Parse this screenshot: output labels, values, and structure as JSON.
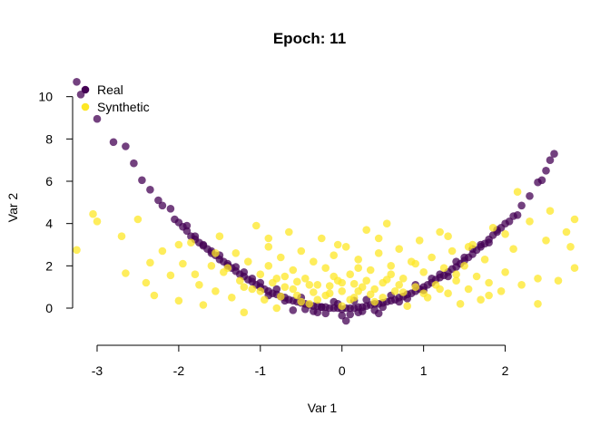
{
  "chart_data": {
    "type": "scatter",
    "title": "Epoch: 11",
    "xlabel": "Var 1",
    "ylabel": "Var 2",
    "xlim": [
      -3.3,
      2.85
    ],
    "ylim": [
      -1.2,
      10.8
    ],
    "xticks": [
      -3,
      -2,
      -1,
      0,
      1,
      2
    ],
    "yticks": [
      0,
      2,
      4,
      6,
      8,
      10
    ],
    "xtick_labels": [
      "-3",
      "-2",
      "-1",
      "0",
      "1",
      "2"
    ],
    "ytick_labels": [
      "0",
      "2",
      "4",
      "6",
      "8",
      "10"
    ],
    "grid": false,
    "legend": {
      "placement": "top-left"
    },
    "series": [
      {
        "name": "Real",
        "color": "#440154",
        "points": [
          [
            -3.25,
            10.7
          ],
          [
            -3.2,
            10.1
          ],
          [
            -3.0,
            8.95
          ],
          [
            -2.8,
            7.85
          ],
          [
            -2.65,
            7.65
          ],
          [
            -2.55,
            6.85
          ],
          [
            -2.45,
            6.05
          ],
          [
            -2.35,
            5.6
          ],
          [
            -2.25,
            5.1
          ],
          [
            -2.2,
            4.85
          ],
          [
            -2.1,
            4.7
          ],
          [
            -2.05,
            4.2
          ],
          [
            -2.0,
            4.05
          ],
          [
            -1.95,
            3.85
          ],
          [
            -1.9,
            3.65
          ],
          [
            -1.85,
            3.4
          ],
          [
            -1.8,
            3.25
          ],
          [
            -1.75,
            3.1
          ],
          [
            -1.7,
            2.95
          ],
          [
            -1.65,
            2.8
          ],
          [
            -1.6,
            2.6
          ],
          [
            -1.55,
            2.5
          ],
          [
            -1.5,
            2.3
          ],
          [
            -1.45,
            2.2
          ],
          [
            -1.4,
            2.0
          ],
          [
            -1.35,
            1.9
          ],
          [
            -1.3,
            1.75
          ],
          [
            -1.25,
            1.6
          ],
          [
            -1.2,
            1.5
          ],
          [
            -1.15,
            1.35
          ],
          [
            -1.1,
            1.25
          ],
          [
            -1.05,
            1.1
          ],
          [
            -1.0,
            1.0
          ],
          [
            -0.95,
            0.9
          ],
          [
            -0.9,
            0.8
          ],
          [
            -0.85,
            0.7
          ],
          [
            -0.8,
            0.65
          ],
          [
            -0.75,
            0.55
          ],
          [
            -0.7,
            0.5
          ],
          [
            -0.65,
            0.4
          ],
          [
            -0.6,
            0.35
          ],
          [
            -0.55,
            0.3
          ],
          [
            -0.5,
            0.25
          ],
          [
            -0.45,
            0.2
          ],
          [
            -0.4,
            0.15
          ],
          [
            -0.35,
            0.1
          ],
          [
            -0.3,
            0.1
          ],
          [
            -0.25,
            0.05
          ],
          [
            -0.2,
            0.05
          ],
          [
            -0.15,
            0.0
          ],
          [
            -0.1,
            0.0
          ],
          [
            -0.05,
            0.0
          ],
          [
            0.0,
            -0.05
          ],
          [
            0.05,
            0.0
          ],
          [
            0.1,
            0.0
          ],
          [
            0.15,
            0.0
          ],
          [
            0.2,
            0.05
          ],
          [
            0.25,
            0.05
          ],
          [
            0.3,
            0.1
          ],
          [
            0.35,
            0.15
          ],
          [
            0.4,
            0.2
          ],
          [
            0.45,
            0.2
          ],
          [
            0.5,
            0.25
          ],
          [
            0.55,
            0.3
          ],
          [
            0.6,
            0.35
          ],
          [
            0.65,
            0.4
          ],
          [
            0.7,
            0.5
          ],
          [
            0.75,
            0.55
          ],
          [
            0.8,
            0.65
          ],
          [
            0.85,
            0.7
          ],
          [
            0.9,
            0.8
          ],
          [
            0.95,
            0.9
          ],
          [
            1.0,
            1.0
          ],
          [
            1.05,
            1.1
          ],
          [
            1.1,
            1.2
          ],
          [
            1.15,
            1.35
          ],
          [
            1.2,
            1.45
          ],
          [
            1.25,
            1.55
          ],
          [
            1.3,
            1.7
          ],
          [
            1.35,
            1.85
          ],
          [
            1.4,
            1.95
          ],
          [
            1.45,
            2.1
          ],
          [
            1.5,
            2.25
          ],
          [
            1.55,
            2.4
          ],
          [
            1.6,
            2.55
          ],
          [
            1.65,
            2.75
          ],
          [
            1.7,
            2.9
          ],
          [
            1.75,
            3.05
          ],
          [
            1.8,
            3.25
          ],
          [
            1.85,
            3.45
          ],
          [
            1.9,
            3.6
          ],
          [
            1.95,
            3.8
          ],
          [
            2.0,
            4.0
          ],
          [
            2.1,
            4.35
          ],
          [
            2.2,
            4.85
          ],
          [
            2.3,
            5.3
          ],
          [
            2.4,
            5.95
          ],
          [
            2.45,
            6.05
          ],
          [
            2.5,
            6.5
          ],
          [
            2.55,
            7.0
          ],
          [
            2.6,
            7.3
          ],
          [
            -0.6,
            -0.1
          ],
          [
            -0.3,
            -0.2
          ],
          [
            0.0,
            -0.35
          ],
          [
            0.2,
            -0.2
          ],
          [
            0.4,
            -0.1
          ],
          [
            -0.1,
            0.3
          ],
          [
            0.3,
            0.4
          ],
          [
            -0.5,
            0.5
          ],
          [
            0.6,
            0.6
          ],
          [
            -0.8,
            0.9
          ],
          [
            0.9,
            1.1
          ],
          [
            -1.2,
            1.7
          ],
          [
            1.2,
            1.6
          ],
          [
            -1.5,
            2.5
          ],
          [
            1.5,
            2.4
          ],
          [
            -0.2,
            -0.25
          ],
          [
            0.1,
            -0.3
          ],
          [
            0.5,
            0.05
          ],
          [
            -0.7,
            0.35
          ],
          [
            0.8,
            0.45
          ],
          [
            -1.0,
            1.2
          ],
          [
            1.0,
            0.85
          ],
          [
            -1.3,
            1.95
          ],
          [
            1.3,
            1.5
          ],
          [
            -1.6,
            2.7
          ],
          [
            1.6,
            2.8
          ],
          [
            -1.8,
            3.4
          ],
          [
            1.8,
            3.1
          ],
          [
            0.05,
            -0.6
          ],
          [
            -0.45,
            -0.05
          ],
          [
            0.25,
            -0.15
          ],
          [
            -0.25,
            0.05
          ],
          [
            0.7,
            0.3
          ],
          [
            -0.9,
            0.6
          ],
          [
            1.1,
            1.4
          ],
          [
            -1.1,
            1.4
          ],
          [
            1.4,
            2.2
          ],
          [
            -1.4,
            2.1
          ],
          [
            1.7,
            3.0
          ],
          [
            -1.7,
            3.0
          ],
          [
            1.9,
            3.7
          ],
          [
            -1.9,
            3.9
          ],
          [
            2.05,
            4.1
          ],
          [
            2.15,
            4.4
          ],
          [
            0.45,
            -0.25
          ],
          [
            -0.05,
            0.2
          ],
          [
            0.15,
            0.35
          ],
          [
            -0.35,
            -0.15
          ]
        ]
      },
      {
        "name": "Synthetic",
        "color": "#fde725",
        "points": [
          [
            -3.25,
            2.75
          ],
          [
            -3.05,
            4.45
          ],
          [
            -3.0,
            4.1
          ],
          [
            -2.7,
            3.4
          ],
          [
            -2.65,
            1.65
          ],
          [
            -2.5,
            4.2
          ],
          [
            -2.35,
            2.15
          ],
          [
            -2.3,
            0.6
          ],
          [
            -2.2,
            2.7
          ],
          [
            -2.1,
            1.55
          ],
          [
            -2.0,
            0.35
          ],
          [
            -1.95,
            2.1
          ],
          [
            -1.85,
            3.1
          ],
          [
            -1.75,
            1.1
          ],
          [
            -1.7,
            0.15
          ],
          [
            -1.6,
            2.0
          ],
          [
            -1.55,
            0.8
          ],
          [
            -1.5,
            3.4
          ],
          [
            -1.45,
            1.7
          ],
          [
            -1.35,
            0.5
          ],
          [
            -1.3,
            2.6
          ],
          [
            -1.25,
            1.3
          ],
          [
            -1.2,
            -0.2
          ],
          [
            -1.15,
            2.2
          ],
          [
            -1.1,
            0.9
          ],
          [
            -1.05,
            3.9
          ],
          [
            -1.0,
            1.6
          ],
          [
            -0.95,
            0.4
          ],
          [
            -0.9,
            2.9
          ],
          [
            -0.85,
            1.2
          ],
          [
            -0.8,
            0.0
          ],
          [
            -0.75,
            2.4
          ],
          [
            -0.7,
            1.0
          ],
          [
            -0.65,
            3.6
          ],
          [
            -0.6,
            1.8
          ],
          [
            -0.55,
            0.6
          ],
          [
            -0.5,
            2.7
          ],
          [
            -0.45,
            1.4
          ],
          [
            -0.4,
            0.2
          ],
          [
            -0.35,
            2.2
          ],
          [
            -0.3,
            1.1
          ],
          [
            -0.25,
            3.3
          ],
          [
            -0.2,
            1.9
          ],
          [
            -0.15,
            0.7
          ],
          [
            -0.1,
            2.5
          ],
          [
            -0.05,
            1.3
          ],
          [
            0.0,
            0.1
          ],
          [
            0.05,
            2.9
          ],
          [
            0.1,
            1.6
          ],
          [
            0.15,
            0.5
          ],
          [
            0.2,
            2.3
          ],
          [
            0.25,
            1.0
          ],
          [
            0.3,
            3.7
          ],
          [
            0.35,
            1.8
          ],
          [
            0.4,
            0.3
          ],
          [
            0.45,
            2.6
          ],
          [
            0.5,
            1.2
          ],
          [
            0.55,
            4.0
          ],
          [
            0.6,
            2.0
          ],
          [
            0.65,
            0.8
          ],
          [
            0.7,
            2.8
          ],
          [
            0.75,
            1.4
          ],
          [
            0.8,
            0.1
          ],
          [
            0.85,
            2.2
          ],
          [
            0.9,
            1.0
          ],
          [
            0.95,
            3.2
          ],
          [
            1.0,
            1.7
          ],
          [
            1.05,
            0.5
          ],
          [
            1.1,
            2.4
          ],
          [
            1.15,
            1.1
          ],
          [
            1.2,
            3.6
          ],
          [
            1.25,
            1.9
          ],
          [
            1.3,
            0.7
          ],
          [
            1.35,
            2.7
          ],
          [
            1.4,
            1.3
          ],
          [
            1.45,
            0.2
          ],
          [
            1.5,
            2.0
          ],
          [
            1.55,
            0.9
          ],
          [
            1.6,
            3.0
          ],
          [
            1.65,
            1.5
          ],
          [
            1.7,
            0.4
          ],
          [
            1.75,
            2.3
          ],
          [
            1.8,
            1.2
          ],
          [
            1.85,
            3.8
          ],
          [
            1.95,
            0.8
          ],
          [
            2.0,
            1.7
          ],
          [
            2.1,
            2.8
          ],
          [
            2.15,
            5.5
          ],
          [
            2.2,
            1.1
          ],
          [
            2.3,
            4.1
          ],
          [
            2.4,
            1.4
          ],
          [
            2.5,
            3.2
          ],
          [
            2.55,
            4.6
          ],
          [
            2.65,
            1.3
          ],
          [
            2.75,
            3.6
          ],
          [
            2.8,
            2.9
          ],
          [
            2.85,
            4.2
          ],
          [
            2.85,
            1.9
          ],
          [
            -0.6,
            0.9
          ],
          [
            -0.2,
            0.6
          ],
          [
            0.2,
            0.8
          ],
          [
            0.5,
            0.5
          ],
          [
            -0.4,
            1.1
          ],
          [
            0.0,
            1.2
          ],
          [
            0.3,
            1.3
          ],
          [
            -0.8,
            1.4
          ],
          [
            0.7,
            1.1
          ],
          [
            -1.0,
            0.8
          ],
          [
            1.0,
            0.7
          ],
          [
            -0.3,
            0.4
          ],
          [
            0.1,
            0.4
          ],
          [
            -0.7,
            1.5
          ],
          [
            0.6,
            1.6
          ],
          [
            -0.5,
            0.3
          ],
          [
            0.4,
            0.9
          ],
          [
            -0.1,
            1.5
          ],
          [
            0.2,
            1.9
          ],
          [
            -0.9,
            2.0
          ],
          [
            0.9,
            2.1
          ],
          [
            -1.2,
            1.0
          ],
          [
            1.2,
            0.9
          ],
          [
            -0.35,
            0.75
          ],
          [
            0.35,
            0.65
          ],
          [
            0.0,
            0.8
          ],
          [
            -0.55,
            1.25
          ],
          [
            0.55,
            1.35
          ],
          [
            -0.15,
            1.05
          ],
          [
            0.15,
            1.15
          ],
          [
            -0.75,
            0.55
          ],
          [
            0.75,
            0.75
          ],
          [
            -1.4,
            1.9
          ],
          [
            1.4,
            1.6
          ],
          [
            -1.8,
            1.6
          ],
          [
            1.8,
            0.6
          ],
          [
            -2.4,
            1.2
          ],
          [
            2.4,
            0.2
          ],
          [
            -0.05,
            3.0
          ],
          [
            0.45,
            3.3
          ],
          [
            -0.9,
            3.3
          ],
          [
            1.3,
            3.4
          ],
          [
            -1.55,
            2.6
          ],
          [
            1.55,
            2.9
          ],
          [
            -2.0,
            3.0
          ],
          [
            2.0,
            3.5
          ]
        ]
      }
    ]
  }
}
